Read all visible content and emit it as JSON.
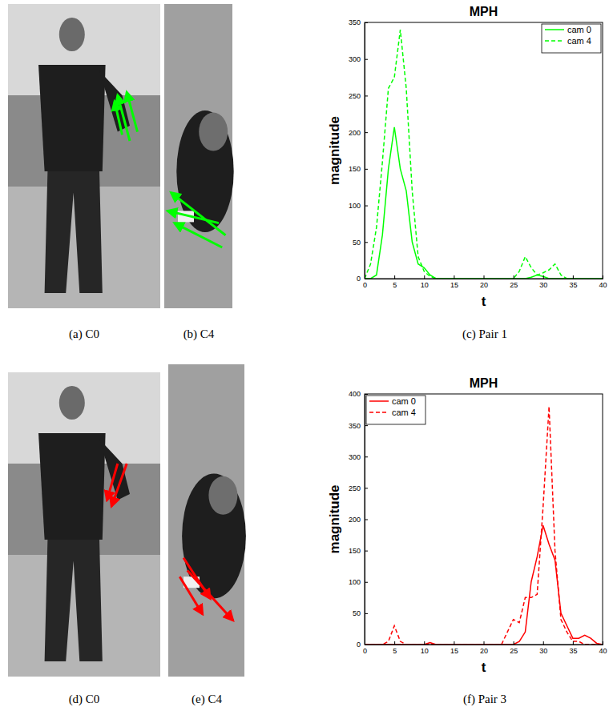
{
  "chart_data": [
    {
      "type": "line",
      "title": "MPH",
      "x_label": "t",
      "y_label": "magnitude",
      "x": [
        0,
        1,
        2,
        3,
        4,
        5,
        6,
        7,
        8,
        9,
        10,
        11,
        12,
        13,
        14,
        15,
        16,
        17,
        18,
        19,
        20,
        21,
        22,
        23,
        24,
        25,
        26,
        27,
        28,
        29,
        30,
        31,
        32,
        33,
        34,
        35,
        36,
        37,
        38,
        39,
        40
      ],
      "xlim": [
        0,
        40
      ],
      "xticks": [
        0,
        5,
        10,
        15,
        20,
        25,
        30,
        35,
        40
      ],
      "ylim": [
        0,
        350
      ],
      "yticks": [
        0,
        50,
        100,
        150,
        200,
        250,
        300,
        350
      ],
      "legend": "upper right",
      "series": [
        {
          "name": "cam 0",
          "color": "#00ff00",
          "line_style": "solid",
          "values": [
            0,
            0,
            5,
            60,
            150,
            207,
            150,
            120,
            50,
            20,
            15,
            5,
            0,
            0,
            0,
            0,
            0,
            0,
            0,
            0,
            0,
            0,
            0,
            0,
            0,
            0,
            0,
            0,
            2,
            5,
            3,
            0,
            0,
            0,
            0,
            0,
            0,
            0,
            0,
            0,
            0
          ]
        },
        {
          "name": "cam 4",
          "color": "#00ff00",
          "line_style": "dashed",
          "values": [
            0,
            20,
            70,
            160,
            260,
            275,
            340,
            260,
            120,
            30,
            10,
            3,
            0,
            0,
            0,
            0,
            0,
            0,
            0,
            0,
            0,
            0,
            0,
            0,
            0,
            0,
            10,
            30,
            15,
            5,
            8,
            12,
            20,
            5,
            0,
            0,
            0,
            0,
            0,
            0,
            0
          ]
        }
      ]
    },
    {
      "type": "line",
      "title": "MPH",
      "x_label": "t",
      "y_label": "magnitude",
      "x": [
        0,
        1,
        2,
        3,
        4,
        5,
        6,
        7,
        8,
        9,
        10,
        11,
        12,
        13,
        14,
        15,
        16,
        17,
        18,
        19,
        20,
        21,
        22,
        23,
        24,
        25,
        26,
        27,
        28,
        29,
        30,
        31,
        32,
        33,
        34,
        35,
        36,
        37,
        38,
        39,
        40
      ],
      "xlim": [
        0,
        40
      ],
      "xticks": [
        0,
        5,
        10,
        15,
        20,
        25,
        30,
        35,
        40
      ],
      "ylim": [
        0,
        400
      ],
      "yticks": [
        0,
        50,
        100,
        150,
        200,
        250,
        300,
        350,
        400
      ],
      "legend": "upper left",
      "series": [
        {
          "name": "cam 0",
          "color": "#ff0000",
          "line_style": "solid",
          "values": [
            0,
            0,
            0,
            0,
            0,
            0,
            0,
            0,
            0,
            0,
            0,
            3,
            0,
            0,
            0,
            0,
            0,
            0,
            0,
            0,
            0,
            0,
            0,
            0,
            0,
            0,
            5,
            20,
            100,
            140,
            190,
            160,
            135,
            50,
            30,
            10,
            10,
            15,
            10,
            2,
            0
          ]
        },
        {
          "name": "cam 4",
          "color": "#ff0000",
          "line_style": "dashed",
          "values": [
            0,
            0,
            0,
            0,
            5,
            30,
            5,
            0,
            0,
            0,
            0,
            0,
            0,
            0,
            0,
            0,
            0,
            0,
            0,
            0,
            0,
            0,
            0,
            0,
            20,
            40,
            35,
            75,
            75,
            80,
            220,
            380,
            150,
            40,
            20,
            5,
            5,
            0,
            0,
            0,
            0
          ]
        }
      ]
    }
  ],
  "figure": {
    "captions": [
      "(a) C0",
      "(b) C4",
      "(c) Pair 1",
      "(d) C0",
      "(e) C4",
      "(f) Pair 3"
    ]
  }
}
